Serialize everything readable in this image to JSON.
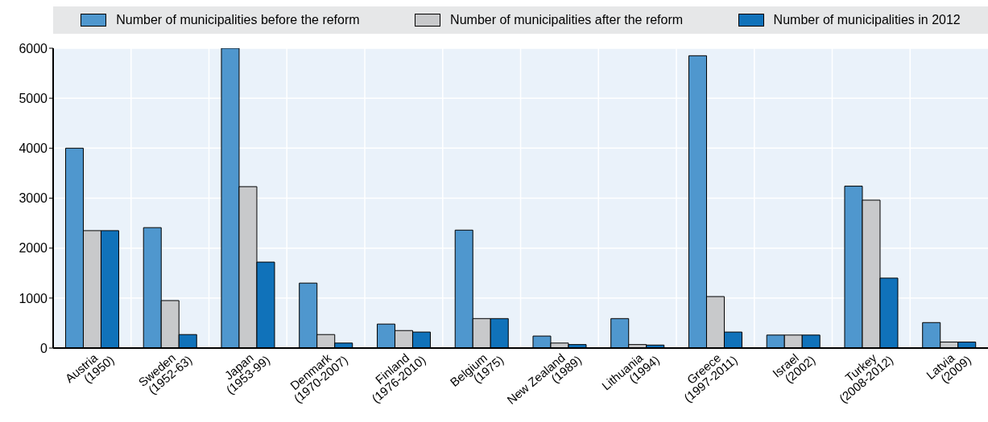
{
  "chart_data": {
    "type": "bar",
    "categories": [
      "Austria (1950)",
      "Sweden (1952-63)",
      "Japan (1953-99)",
      "Denmark (1970-2007)",
      "Finland (1976-2010)",
      "Belgium (1975)",
      "New Zealand (1989)",
      "Lithuania (1994)",
      "Greece (1997-2011)",
      "Israel (2002)",
      "Turkey (2008-2012)",
      "Latvia (2009)"
    ],
    "series": [
      {
        "name": "Number of municipalities before the reform",
        "color": "#4f97ce",
        "values": [
          4000,
          2410,
          6000,
          1300,
          480,
          2360,
          240,
          590,
          5850,
          260,
          3240,
          510
        ]
      },
      {
        "name": "Number of municipalities after the reform",
        "color": "#c8c9cb",
        "values": [
          2350,
          950,
          3230,
          270,
          350,
          590,
          100,
          70,
          1030,
          260,
          2960,
          120
        ]
      },
      {
        "name": "Number of municipalities in 2012",
        "color": "#1072ba",
        "values": [
          2350,
          270,
          1720,
          100,
          320,
          590,
          70,
          60,
          320,
          260,
          1400,
          120
        ]
      }
    ],
    "ylim": [
      0,
      6000
    ],
    "yticks": [
      0,
      1000,
      2000,
      3000,
      4000,
      5000,
      6000
    ],
    "grid": true,
    "legend": "top"
  }
}
